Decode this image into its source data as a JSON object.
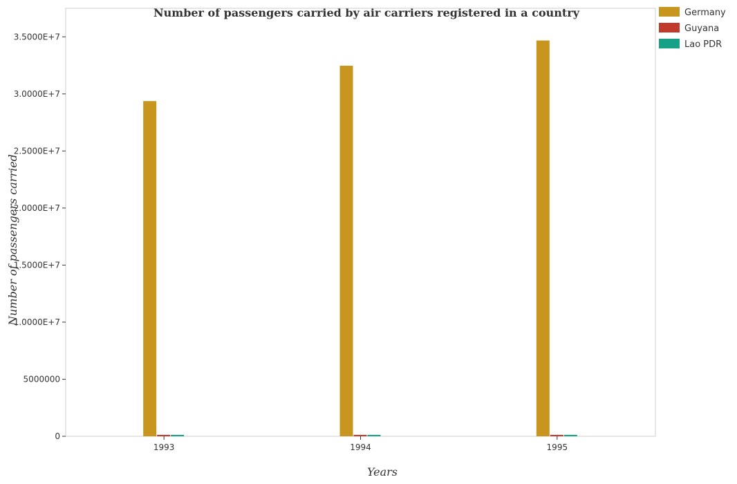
{
  "chart_data": {
    "type": "bar",
    "title": "Number of passengers carried by air carriers registered in a country",
    "xlabel": "Years",
    "ylabel": "Number of passengers carried",
    "categories": [
      "1993",
      "1994",
      "1995"
    ],
    "series": [
      {
        "name": "Germany",
        "color": "#C8961E",
        "values": [
          29370000,
          32470000,
          34680000
        ]
      },
      {
        "name": "Guyana",
        "color": "#C0392B",
        "values": [
          125000,
          125000,
          125000
        ]
      },
      {
        "name": "Lao PDR",
        "color": "#16A085",
        "values": [
          125000,
          125000,
          128000
        ]
      }
    ],
    "ylim": [
      0,
      37500000
    ],
    "yticks": [
      0,
      5000000,
      10000000,
      15000000,
      20000000,
      25000000,
      30000000,
      35000000
    ],
    "ytick_labels": [
      "0",
      "5000000",
      "1.0000E+7",
      "1.5000E+7",
      "2.0000E+7",
      "2.5000E+7",
      "3.0000E+7",
      "3.5000E+7"
    ],
    "grid": false,
    "legend_position": "top-right"
  }
}
